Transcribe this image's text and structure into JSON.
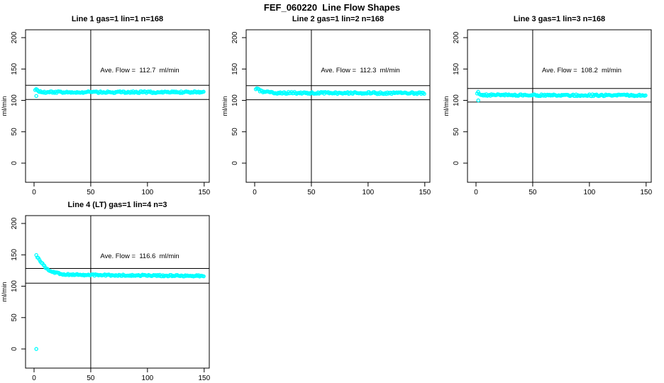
{
  "main_title": "FEF_060220  Line Flow Shapes",
  "colors": {
    "data": "#00FFFF",
    "axis": "#000000",
    "background": "#FFFFFF"
  },
  "axes": {
    "xticks": [
      0,
      50,
      100,
      150
    ],
    "yticks": [
      0,
      50,
      100,
      150,
      200
    ],
    "xlim": [
      -7.5,
      154.5
    ],
    "ylim": [
      -30.5,
      212.5
    ],
    "ylabel": "ml/min",
    "vline_x": 50,
    "grid": false
  },
  "chart_data": [
    {
      "type": "scatter",
      "title": "Line 1 gas=1 lin=1 n=168",
      "ave_flow": 112.7,
      "annotation": "Ave. Flow =  112.7  ml/min",
      "annotation_pos": {
        "x": 93,
        "y": 150
      },
      "ref_lines": [
        124.0,
        101.4
      ],
      "x_start": 1,
      "x_end": 150,
      "profile": [
        [
          1,
          117
        ],
        [
          2,
          119
        ],
        [
          3,
          115.5
        ],
        [
          5,
          113.5
        ],
        [
          10,
          113.2
        ],
        [
          150,
          113
        ]
      ],
      "outliers": [
        [
          2,
          107
        ]
      ],
      "jitter": 1.4
    },
    {
      "type": "scatter",
      "title": "Line 2 gas=1 lin=2 n=168",
      "ave_flow": 112.3,
      "annotation": "Ave. Flow =  112.3  ml/min",
      "annotation_pos": {
        "x": 93,
        "y": 150
      },
      "ref_lines": [
        123.5,
        101.1
      ],
      "x_start": 1,
      "x_end": 150,
      "profile": [
        [
          1,
          119
        ],
        [
          3,
          117
        ],
        [
          6,
          114.5
        ],
        [
          10,
          113
        ],
        [
          16,
          112
        ],
        [
          150,
          111.5
        ]
      ],
      "outliers": [],
      "jitter": 1.6
    },
    {
      "type": "scatter",
      "title": "Line 3 gas=1 lin=3 n=168",
      "ave_flow": 108.2,
      "annotation": "Ave. Flow =  108.2  ml/min",
      "annotation_pos": {
        "x": 93,
        "y": 150
      },
      "ref_lines": [
        119.0,
        97.4
      ],
      "x_start": 1,
      "x_end": 150,
      "profile": [
        [
          1,
          111
        ],
        [
          2,
          113
        ],
        [
          4,
          109.5
        ],
        [
          8,
          108.5
        ],
        [
          150,
          108
        ]
      ],
      "outliers": [
        [
          2,
          100
        ]
      ],
      "jitter": 1.4
    },
    {
      "type": "scatter",
      "title": "Line 4 (LT) gas=1 lin=4 n=3",
      "ave_flow": 116.6,
      "annotation": "Ave. Flow =  116.6  ml/min",
      "annotation_pos": {
        "x": 93,
        "y": 150
      },
      "ref_lines": [
        128.3,
        104.9
      ],
      "x_start": 2,
      "x_end": 150,
      "profile": [
        [
          2,
          149
        ],
        [
          4,
          144
        ],
        [
          7,
          137
        ],
        [
          10,
          130
        ],
        [
          14,
          124.5
        ],
        [
          18,
          121.5
        ],
        [
          24,
          119.5
        ],
        [
          32,
          118.5
        ],
        [
          45,
          118
        ],
        [
          70,
          117.5
        ],
        [
          110,
          117
        ],
        [
          150,
          116.5
        ]
      ],
      "outliers": [
        [
          2,
          0
        ]
      ],
      "jitter": 1.2
    }
  ]
}
